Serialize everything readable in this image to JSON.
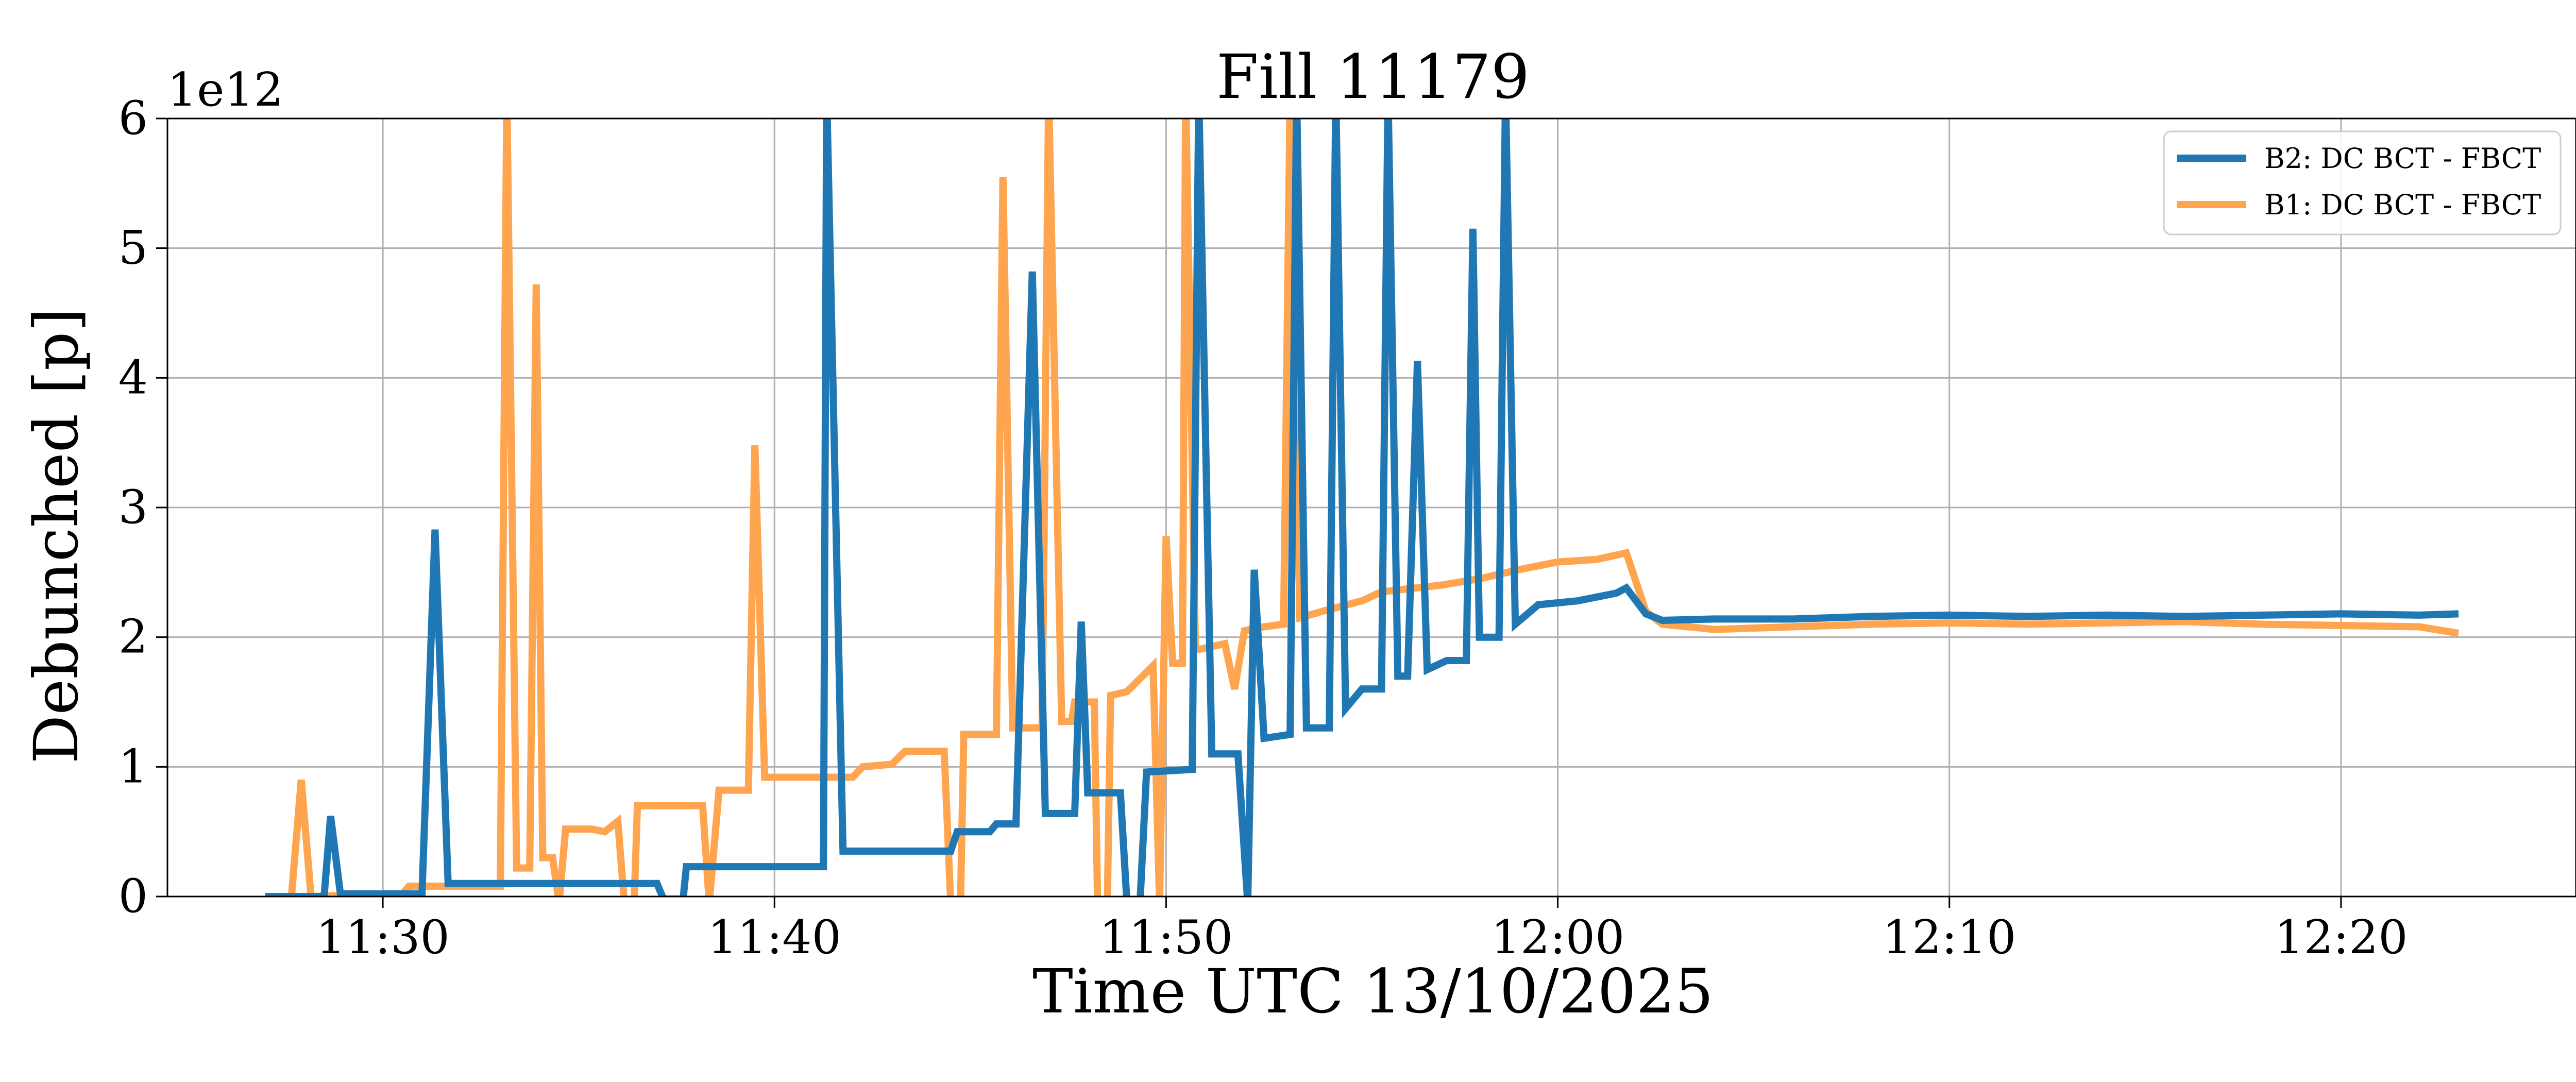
{
  "chart_data": {
    "type": "line",
    "title": "Fill 11179",
    "xlabel": "Time UTC 13/10/2025",
    "ylabel": "Debunched [p]",
    "y_offset_label": "1e12",
    "y_scale": 1000000000000.0,
    "ylim": [
      0,
      6
    ],
    "xlim": [
      "11:24:30",
      "12:26:00"
    ],
    "x_ticks": [
      "11:30",
      "11:40",
      "11:50",
      "12:00",
      "12:10",
      "12:20"
    ],
    "y_ticks": [
      0,
      1,
      2,
      3,
      4,
      5,
      6
    ],
    "grid": true,
    "legend_position": "top-right",
    "series": [
      {
        "name": "B2: DC BCT - FBCT",
        "color": "#1f77b4",
        "points": [
          [
            "11:27:00",
            0.0
          ],
          [
            "11:28:30",
            0.0
          ],
          [
            "11:28:40",
            0.62
          ],
          [
            "11:28:55",
            0.02
          ],
          [
            "11:31:00",
            0.02
          ],
          [
            "11:31:20",
            2.83
          ],
          [
            "11:31:40",
            0.1
          ],
          [
            "11:37:00",
            0.1
          ],
          [
            "11:37:10",
            -0.02
          ],
          [
            "11:37:40",
            -0.02
          ],
          [
            "11:37:45",
            0.23
          ],
          [
            "11:41:15",
            0.23
          ],
          [
            "11:41:20",
            6.2
          ],
          [
            "11:41:45",
            0.35
          ],
          [
            "11:44:30",
            0.35
          ],
          [
            "11:44:40",
            0.5
          ],
          [
            "11:45:30",
            0.5
          ],
          [
            "11:45:40",
            0.56
          ],
          [
            "11:46:10",
            0.56
          ],
          [
            "11:46:35",
            4.82
          ],
          [
            "11:46:55",
            0.64
          ],
          [
            "11:47:40",
            0.64
          ],
          [
            "11:47:50",
            2.12
          ],
          [
            "11:48:00",
            0.8
          ],
          [
            "11:48:50",
            0.8
          ],
          [
            "11:49:00",
            -0.05
          ],
          [
            "11:49:20",
            -0.05
          ],
          [
            "11:49:30",
            0.96
          ],
          [
            "11:50:40",
            0.98
          ],
          [
            "11:50:50",
            6.2
          ],
          [
            "11:51:10",
            1.1
          ],
          [
            "11:51:50",
            1.1
          ],
          [
            "11:52:05",
            -0.05
          ],
          [
            "11:52:15",
            2.52
          ],
          [
            "11:52:30",
            1.22
          ],
          [
            "11:53:10",
            1.25
          ],
          [
            "11:53:20",
            6.2
          ],
          [
            "11:53:35",
            1.3
          ],
          [
            "11:54:10",
            1.3
          ],
          [
            "11:54:20",
            6.2
          ],
          [
            "11:54:35",
            1.45
          ],
          [
            "11:55:00",
            1.6
          ],
          [
            "11:55:30",
            1.6
          ],
          [
            "11:55:40",
            6.2
          ],
          [
            "11:55:55",
            1.7
          ],
          [
            "11:56:10",
            1.7
          ],
          [
            "11:56:25",
            4.13
          ],
          [
            "11:56:40",
            1.75
          ],
          [
            "11:57:10",
            1.82
          ],
          [
            "11:57:40",
            1.82
          ],
          [
            "11:57:50",
            5.15
          ],
          [
            "11:58:00",
            2.0
          ],
          [
            "11:58:30",
            2.0
          ],
          [
            "11:58:40",
            6.2
          ],
          [
            "11:58:55",
            2.1
          ],
          [
            "11:59:30",
            2.25
          ],
          [
            "12:00:30",
            2.28
          ],
          [
            "12:01:30",
            2.34
          ],
          [
            "12:01:45",
            2.38
          ],
          [
            "12:02:15",
            2.18
          ],
          [
            "12:02:40",
            2.13
          ],
          [
            "12:04:00",
            2.14
          ],
          [
            "12:06:00",
            2.14
          ],
          [
            "12:08:00",
            2.16
          ],
          [
            "12:10:00",
            2.17
          ],
          [
            "12:12:00",
            2.16
          ],
          [
            "12:14:00",
            2.17
          ],
          [
            "12:16:00",
            2.16
          ],
          [
            "12:18:00",
            2.17
          ],
          [
            "12:20:00",
            2.18
          ],
          [
            "12:22:00",
            2.17
          ],
          [
            "12:23:00",
            2.18
          ]
        ]
      },
      {
        "name": "B1: DC BCT - FBCT",
        "color": "#ffa54f",
        "points": [
          [
            "11:27:00",
            0.0
          ],
          [
            "11:27:40",
            0.0
          ],
          [
            "11:27:55",
            0.9
          ],
          [
            "11:28:10",
            0.0
          ],
          [
            "11:30:30",
            0.02
          ],
          [
            "11:30:40",
            0.08
          ],
          [
            "11:33:00",
            0.08
          ],
          [
            "11:33:10",
            6.2
          ],
          [
            "11:33:25",
            0.22
          ],
          [
            "11:33:45",
            0.22
          ],
          [
            "11:33:55",
            4.72
          ],
          [
            "11:34:05",
            0.3
          ],
          [
            "11:34:20",
            0.3
          ],
          [
            "11:34:30",
            -0.05
          ],
          [
            "11:34:40",
            0.52
          ],
          [
            "11:35:20",
            0.52
          ],
          [
            "11:35:40",
            0.5
          ],
          [
            "11:36:00",
            0.58
          ],
          [
            "11:36:10",
            -0.05
          ],
          [
            "11:36:25",
            -0.05
          ],
          [
            "11:36:30",
            0.7
          ],
          [
            "11:37:30",
            0.7
          ],
          [
            "11:38:10",
            0.7
          ],
          [
            "11:38:20",
            -0.05
          ],
          [
            "11:38:35",
            0.82
          ],
          [
            "11:39:20",
            0.82
          ],
          [
            "11:39:30",
            3.48
          ],
          [
            "11:39:45",
            0.92
          ],
          [
            "11:41:30",
            0.92
          ],
          [
            "11:42:00",
            0.92
          ],
          [
            "11:42:15",
            1.0
          ],
          [
            "11:43:00",
            1.02
          ],
          [
            "11:43:20",
            1.12
          ],
          [
            "11:44:20",
            1.12
          ],
          [
            "11:44:30",
            -0.05
          ],
          [
            "11:44:45",
            -0.05
          ],
          [
            "11:44:50",
            1.25
          ],
          [
            "11:45:40",
            1.25
          ],
          [
            "11:45:50",
            5.55
          ],
          [
            "11:46:05",
            1.3
          ],
          [
            "11:46:50",
            1.3
          ],
          [
            "11:47:00",
            6.2
          ],
          [
            "11:47:20",
            1.35
          ],
          [
            "11:47:35",
            1.35
          ],
          [
            "11:47:40",
            1.5
          ],
          [
            "11:48:10",
            1.5
          ],
          [
            "11:48:15",
            -0.05
          ],
          [
            "11:48:30",
            -0.05
          ],
          [
            "11:48:35",
            1.55
          ],
          [
            "11:49:00",
            1.58
          ],
          [
            "11:49:20",
            1.68
          ],
          [
            "11:49:40",
            1.78
          ],
          [
            "11:49:50",
            -0.05
          ],
          [
            "11:50:00",
            2.78
          ],
          [
            "11:50:10",
            1.8
          ],
          [
            "11:50:25",
            1.8
          ],
          [
            "11:50:30",
            6.2
          ],
          [
            "11:50:45",
            1.9
          ],
          [
            "11:51:30",
            1.95
          ],
          [
            "11:51:45",
            1.6
          ],
          [
            "11:52:00",
            2.05
          ],
          [
            "11:52:30",
            2.08
          ],
          [
            "11:53:00",
            2.1
          ],
          [
            "11:53:10",
            6.2
          ],
          [
            "11:53:25",
            2.15
          ],
          [
            "11:54:00",
            2.2
          ],
          [
            "11:55:00",
            2.28
          ],
          [
            "11:55:30",
            2.35
          ],
          [
            "11:57:00",
            2.4
          ],
          [
            "11:58:00",
            2.45
          ],
          [
            "11:59:00",
            2.52
          ],
          [
            "12:00:00",
            2.58
          ],
          [
            "12:01:00",
            2.6
          ],
          [
            "12:01:45",
            2.65
          ],
          [
            "12:02:15",
            2.2
          ],
          [
            "12:02:40",
            2.1
          ],
          [
            "12:04:00",
            2.06
          ],
          [
            "12:06:00",
            2.08
          ],
          [
            "12:08:00",
            2.1
          ],
          [
            "12:10:00",
            2.11
          ],
          [
            "12:12:00",
            2.1
          ],
          [
            "12:14:00",
            2.11
          ],
          [
            "12:16:00",
            2.12
          ],
          [
            "12:18:00",
            2.1
          ],
          [
            "12:20:00",
            2.09
          ],
          [
            "12:22:00",
            2.08
          ],
          [
            "12:23:00",
            2.03
          ]
        ]
      }
    ]
  }
}
